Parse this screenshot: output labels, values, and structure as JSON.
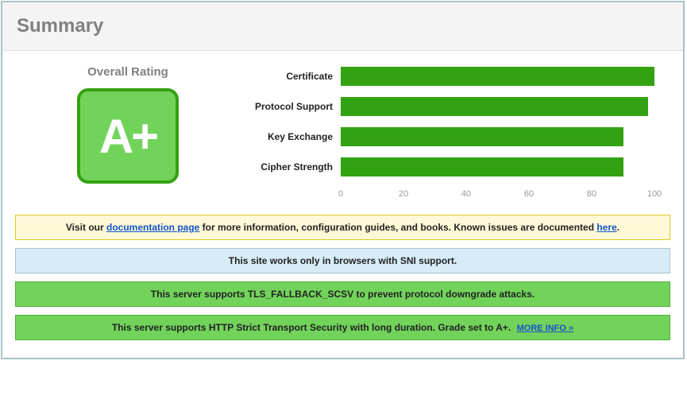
{
  "header": {
    "title": "Summary"
  },
  "rating": {
    "label": "Overall Rating",
    "grade": "A+",
    "badge_bg": "#72d35b",
    "badge_border": "#33a212"
  },
  "chart": {
    "type": "bar",
    "bar_color": "#33a212",
    "axis_color": "#999999",
    "label_fontsize": 12,
    "rows": [
      {
        "label": "Certificate",
        "value": 100
      },
      {
        "label": "Protocol Support",
        "value": 98
      },
      {
        "label": "Key Exchange",
        "value": 90
      },
      {
        "label": "Cipher Strength",
        "value": 90
      }
    ],
    "xlim": [
      0,
      100
    ],
    "ticks": [
      0,
      20,
      40,
      60,
      80,
      100
    ]
  },
  "notices": [
    {
      "kind": "yellow",
      "parts": [
        {
          "t": "text",
          "v": "Visit our "
        },
        {
          "t": "link",
          "v": "documentation page"
        },
        {
          "t": "text",
          "v": " for more information, configuration guides, and books. Known issues are documented "
        },
        {
          "t": "link",
          "v": "here"
        },
        {
          "t": "text",
          "v": "."
        }
      ]
    },
    {
      "kind": "blue",
      "parts": [
        {
          "t": "text",
          "v": "This site works only in browsers with SNI support."
        }
      ]
    },
    {
      "kind": "green",
      "parts": [
        {
          "t": "text",
          "v": "This server supports TLS_FALLBACK_SCSV to prevent protocol downgrade attacks."
        }
      ]
    },
    {
      "kind": "green",
      "parts": [
        {
          "t": "text",
          "v": "This server supports HTTP Strict Transport Security with long duration. Grade set to A+."
        },
        {
          "t": "more",
          "v": "MORE INFO »"
        }
      ]
    }
  ]
}
